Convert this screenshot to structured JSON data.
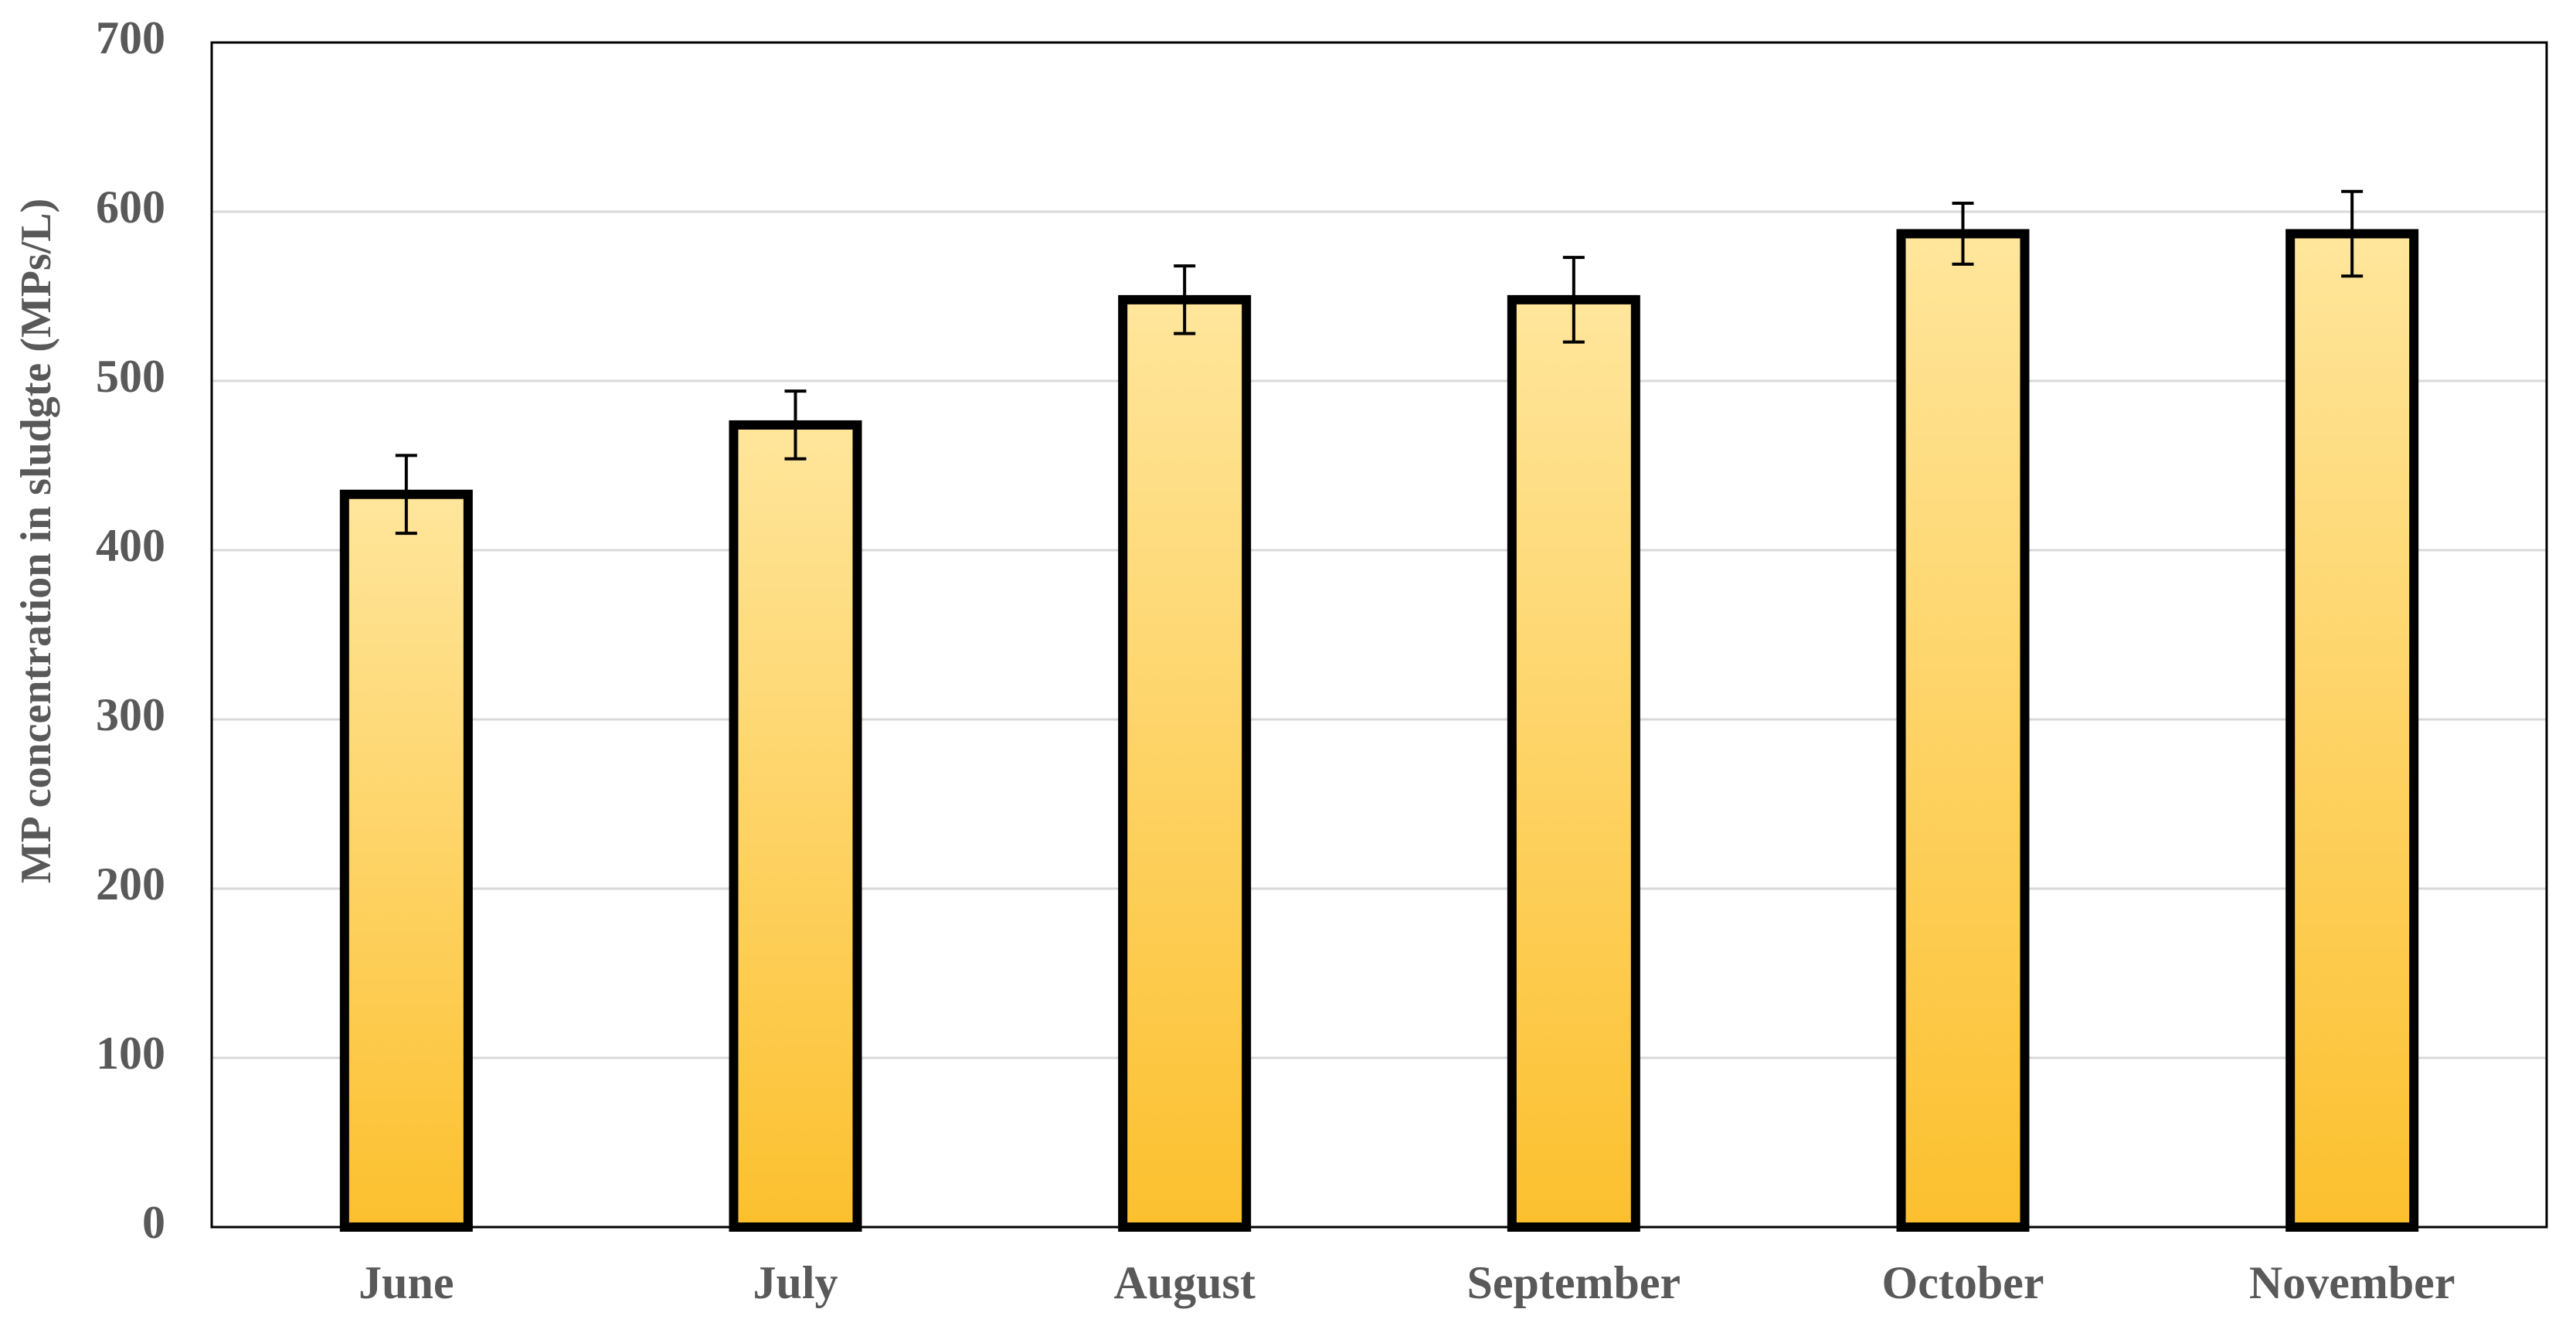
{
  "chart_data": {
    "type": "bar",
    "y_label": "MP concentration in sludgte (MPs/L)",
    "categories": [
      "June",
      "July",
      "August",
      "September",
      "October",
      "November"
    ],
    "values": [
      433,
      474,
      548,
      548,
      587,
      587
    ],
    "errors": [
      23,
      20,
      20,
      25,
      18,
      25
    ],
    "gradient": [
      "#ffe69c",
      "#fcc02e"
    ],
    "ylim": [
      0,
      700
    ],
    "yticks": [
      0,
      100,
      200,
      300,
      400,
      500,
      600,
      700
    ],
    "grid": true
  }
}
